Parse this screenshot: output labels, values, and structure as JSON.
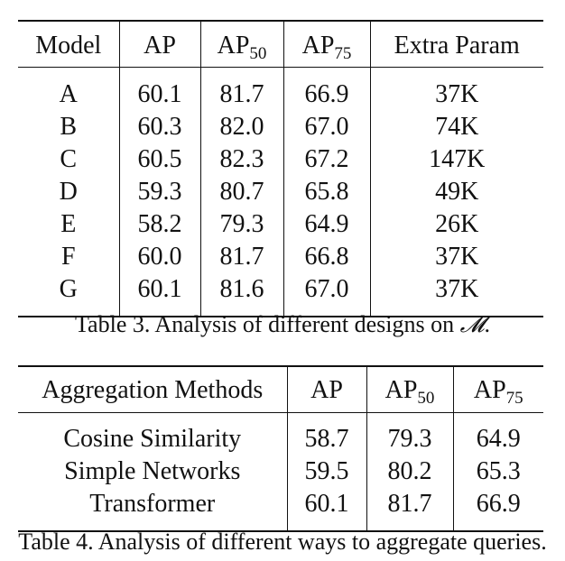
{
  "table3": {
    "headers": {
      "model": "Model",
      "ap": "AP",
      "ap_base": "AP",
      "ap50_sub": "50",
      "ap75_sub": "75",
      "extra": "Extra Param"
    },
    "rows": [
      {
        "model": "A",
        "ap": "60.1",
        "ap50": "81.7",
        "ap75": "66.9",
        "extra": "37K"
      },
      {
        "model": "B",
        "ap": "60.3",
        "ap50": "82.0",
        "ap75": "67.0",
        "extra": "74K"
      },
      {
        "model": "C",
        "ap": "60.5",
        "ap50": "82.3",
        "ap75": "67.2",
        "extra": "147K"
      },
      {
        "model": "D",
        "ap": "59.3",
        "ap50": "80.7",
        "ap75": "65.8",
        "extra": "49K"
      },
      {
        "model": "E",
        "ap": "58.2",
        "ap50": "79.3",
        "ap75": "64.9",
        "extra": "26K"
      },
      {
        "model": "F",
        "ap": "60.0",
        "ap50": "81.7",
        "ap75": "66.8",
        "extra": "37K"
      },
      {
        "model": "G",
        "ap": "60.1",
        "ap50": "81.6",
        "ap75": "67.0",
        "extra": "37K"
      }
    ],
    "caption_text": "Table 3. Analysis of different designs on ",
    "caption_symbol": "𝓜",
    "caption_end": "."
  },
  "table4": {
    "headers": {
      "method": "Aggregation Methods",
      "ap": "AP",
      "ap_base": "AP",
      "ap50_sub": "50",
      "ap75_sub": "75"
    },
    "rows": [
      {
        "method": "Cosine Similarity",
        "ap": "58.7",
        "ap50": "79.3",
        "ap75": "64.9"
      },
      {
        "method": "Simple Networks",
        "ap": "59.5",
        "ap50": "80.2",
        "ap75": "65.3"
      },
      {
        "method": "Transformer",
        "ap": "60.1",
        "ap50": "81.7",
        "ap75": "66.9"
      }
    ],
    "caption": "Table 4. Analysis of different ways to aggregate queries."
  }
}
